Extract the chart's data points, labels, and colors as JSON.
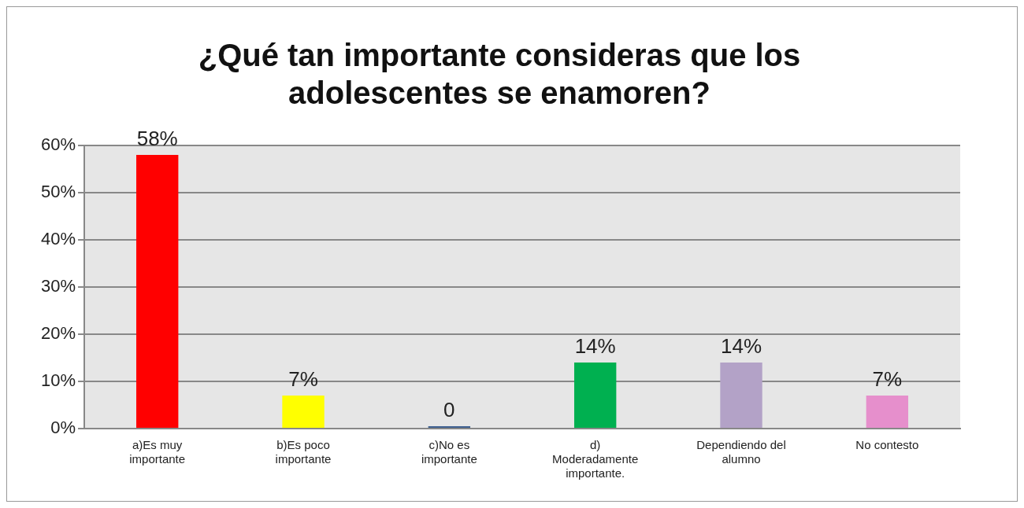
{
  "chart_data": {
    "type": "bar",
    "title": "¿Qué tan importante consideras que los adolescentes se enamoren?",
    "categories": [
      "a)Es muy importante",
      "b)Es poco importante",
      "c)No es importante",
      "d) Moderadamente importante.",
      "Dependiendo del alumno",
      "No contesto"
    ],
    "values": [
      58,
      7,
      0,
      14,
      14,
      7
    ],
    "colors": [
      "#ff0000",
      "#ffff00",
      "#3d5f8f",
      "#00b050",
      "#b3a2c7",
      "#e68fcc"
    ],
    "value_labels": [
      "58%",
      "7%",
      "0",
      "14%",
      "14%",
      "7%"
    ],
    "ylim": [
      0,
      60
    ],
    "yticks": [
      {
        "value": 0,
        "label": "0%"
      },
      {
        "value": 10,
        "label": "10%"
      },
      {
        "value": 20,
        "label": "20%"
      },
      {
        "value": 30,
        "label": "30%"
      },
      {
        "value": 40,
        "label": "40%"
      },
      {
        "value": 50,
        "label": "50%"
      },
      {
        "value": 60,
        "label": "60%"
      }
    ],
    "grid": "y"
  }
}
